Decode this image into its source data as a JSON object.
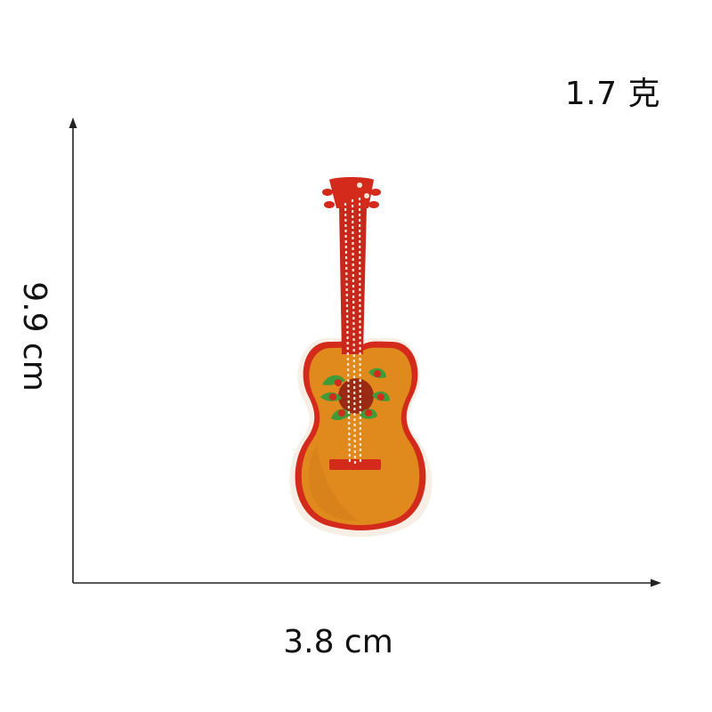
{
  "labels": {
    "weight": "1.7 克",
    "width": "3.8 cm",
    "height": "9.9 cm"
  },
  "colors": {
    "body_orange": "#e08a1e",
    "trim_red": "#d42a1c",
    "leaf_green": "#3f9a3a",
    "string_white": "#f4e6d6"
  },
  "subject": {
    "icon": "guitar-patch-icon"
  }
}
